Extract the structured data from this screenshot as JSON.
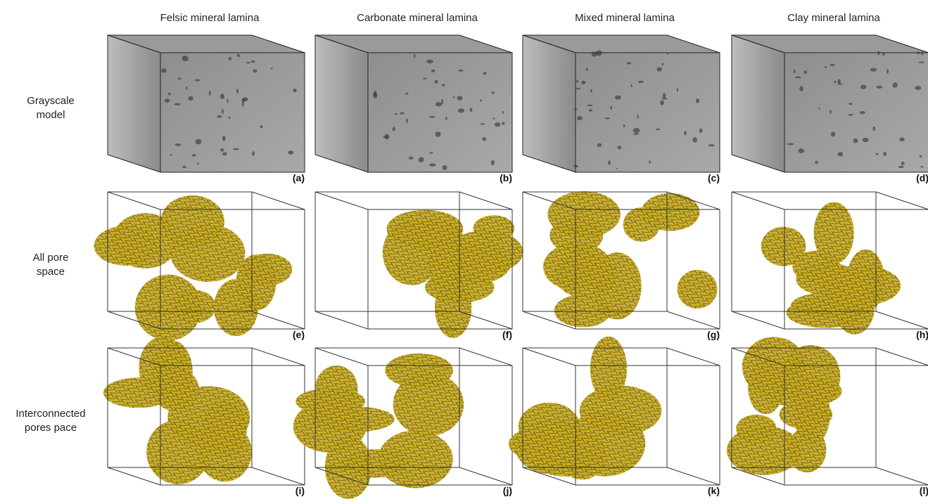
{
  "columns": [
    "Felsic mineral lamina",
    "Carbonate mineral lamina",
    "Mixed mineral lamina",
    "Clay mineral lamina"
  ],
  "rows": [
    {
      "lines": [
        "Grayscale",
        "model"
      ]
    },
    {
      "lines": [
        "All pore",
        "space"
      ]
    },
    {
      "lines": [
        "Interconnected",
        "pores pace"
      ]
    }
  ],
  "panels": [
    "(a)",
    "(b)",
    "(c)",
    "(d)",
    "(e)",
    "(f)",
    "(g)",
    "(h)",
    "(i)",
    "(j)",
    "(k)",
    "(l)"
  ]
}
